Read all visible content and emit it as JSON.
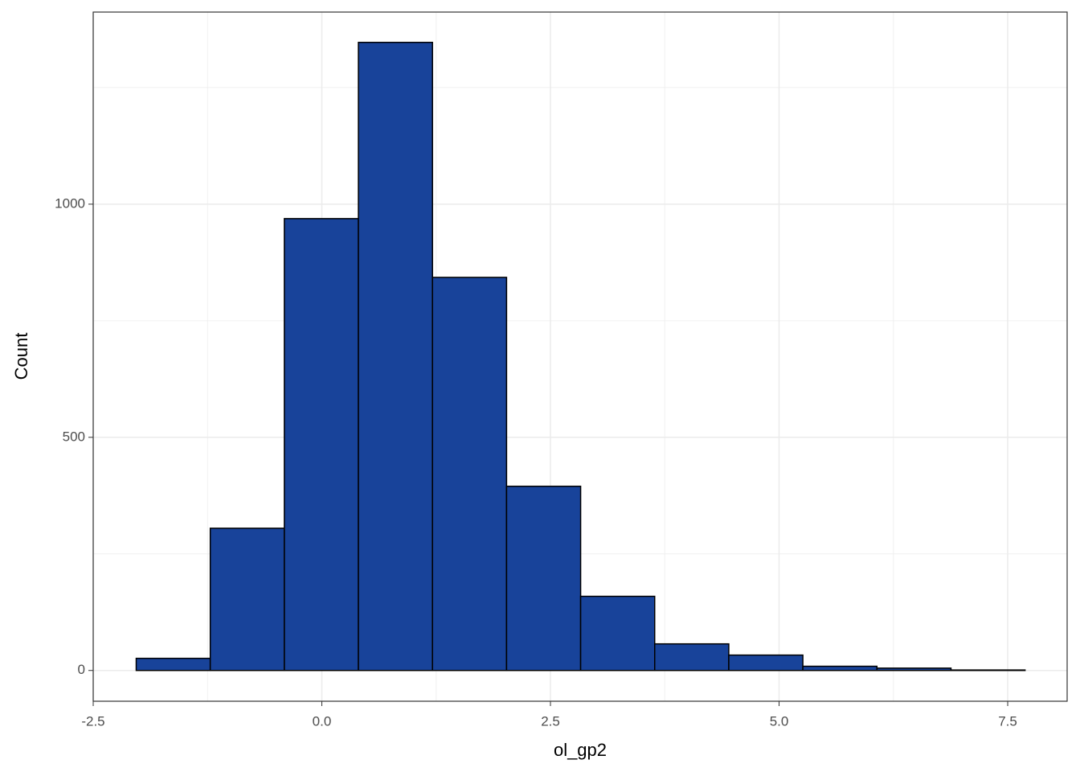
{
  "chart_data": {
    "type": "histogram",
    "xlabel": "ol_gp2",
    "ylabel": "Count",
    "bins": [
      -2.03,
      -1.22,
      -0.41,
      0.4,
      1.21,
      2.02,
      2.83,
      3.64,
      4.45,
      5.26,
      6.07,
      6.88,
      7.69
    ],
    "counts": [
      26,
      305,
      969,
      1347,
      843,
      395,
      159,
      57,
      33,
      9,
      5,
      1
    ],
    "color": "#18439a",
    "edgecolor": "#000000",
    "xlim": [
      -2.5,
      8.15
    ],
    "ylim": [
      -66,
      1412
    ],
    "xticks": [
      -2.5,
      {
        "value": 0,
        "label": "0.0"
      },
      2.5,
      {
        "value": 5,
        "label": "5.0"
      },
      7.5
    ],
    "yticks": [
      0,
      500,
      1000
    ],
    "xminor": [
      -1.25,
      1.25,
      3.75,
      6.25
    ],
    "yminor": [
      250,
      750,
      1250
    ],
    "grid": true
  }
}
